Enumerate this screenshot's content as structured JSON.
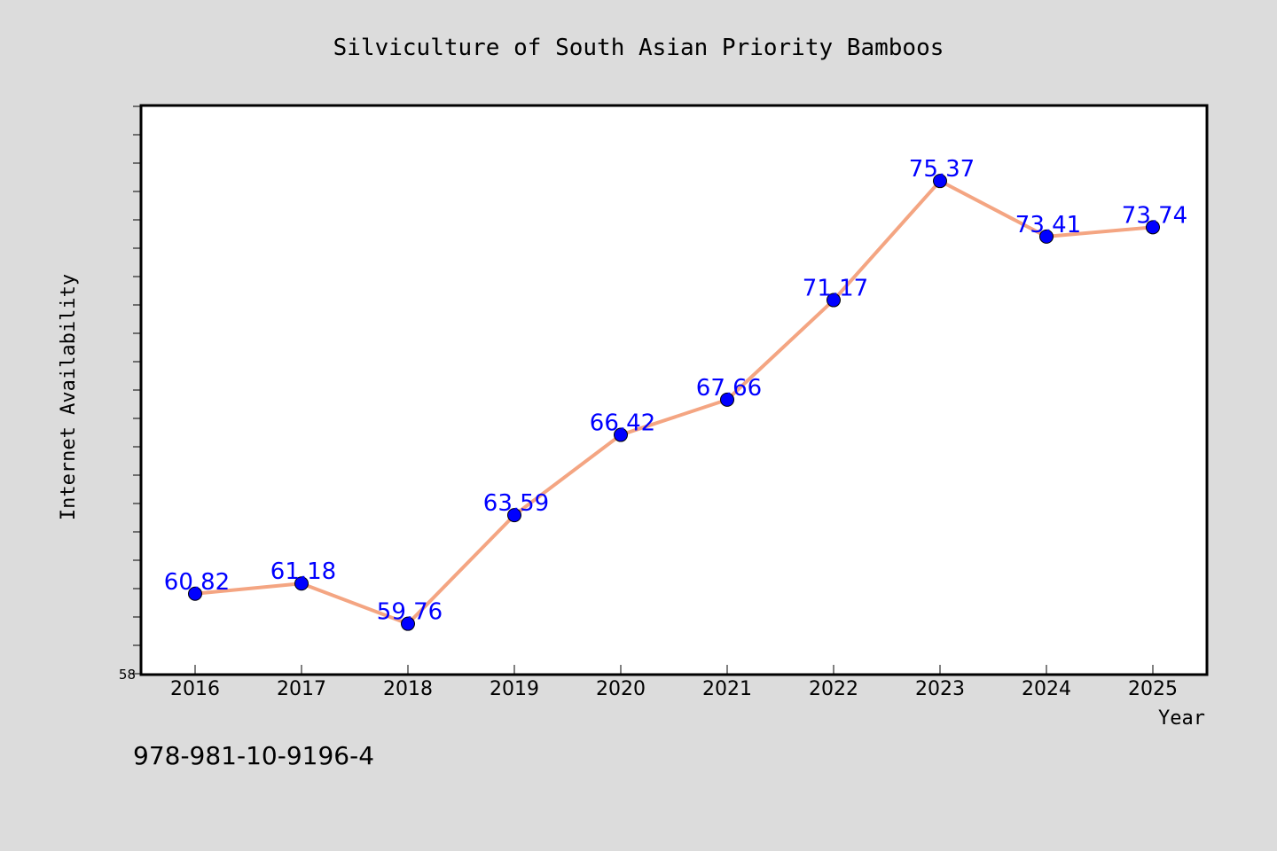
{
  "chart_data": {
    "type": "line",
    "title": "Silviculture of South Asian Priority Bamboos",
    "xlabel": "Year",
    "ylabel": "Internet Availability",
    "categories": [
      "2016",
      "2017",
      "2018",
      "2019",
      "2020",
      "2021",
      "2022",
      "2023",
      "2024",
      "2025"
    ],
    "values": [
      60.82,
      61.18,
      59.76,
      63.59,
      66.42,
      67.66,
      71.17,
      75.37,
      73.41,
      73.74
    ],
    "data_labels": [
      "60.82",
      "61.18",
      "59.76",
      "63.59",
      "66.42",
      "67.66",
      "71.17",
      "75.37",
      "73.41",
      "73.74"
    ],
    "ylim": [
      58,
      78
    ],
    "y_minor_tick_step": 1,
    "y_tick_labels": [
      "58"
    ],
    "grid": false,
    "legend": "none",
    "colors": {
      "line": "#f4a582",
      "marker": "#0000ff",
      "data_label": "#0000ff",
      "plot_background": "#ffffff",
      "figure_background": "#dcdcdc"
    }
  },
  "footer": {
    "isbn": "978-981-10-9196-4"
  }
}
